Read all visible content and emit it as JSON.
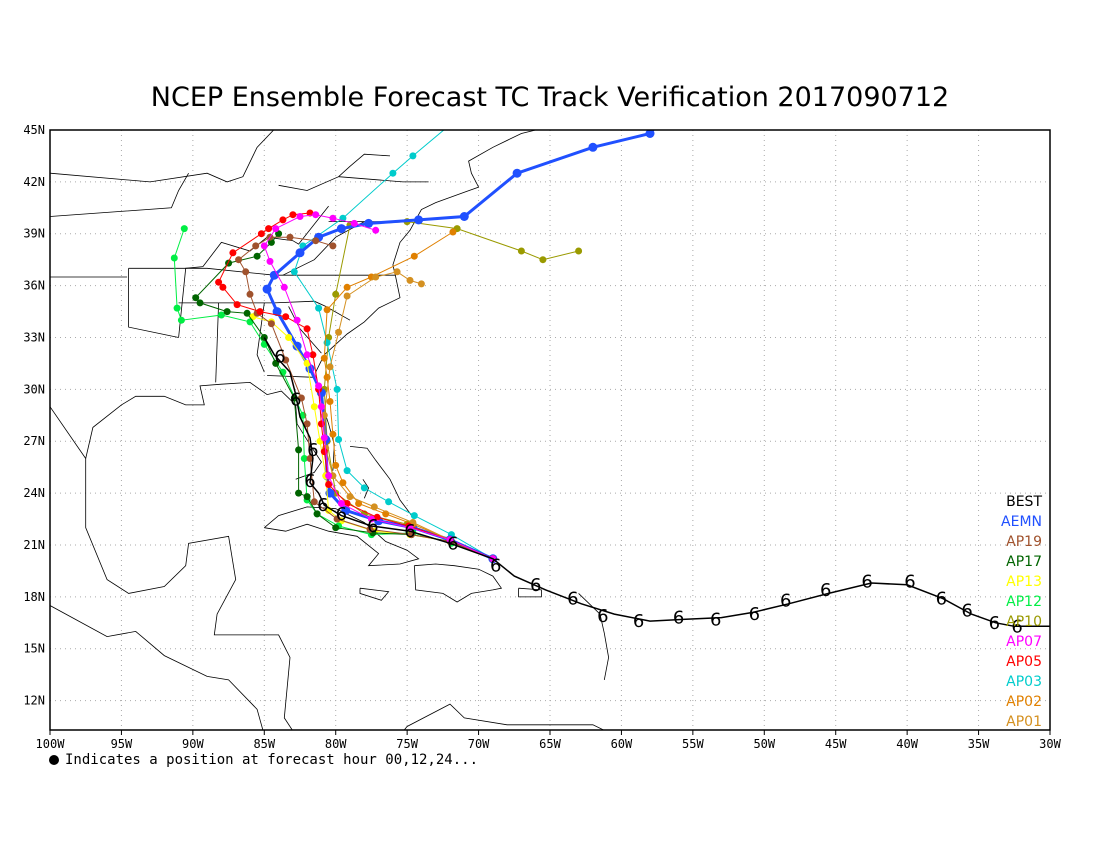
{
  "title": "NCEP Ensemble Forecast TC Track Verification 2017090712",
  "footnote": "Indicates a position at forecast hour 00,12,24...",
  "axes": {
    "lon_labels": [
      "100W",
      "95W",
      "90W",
      "85W",
      "80W",
      "75W",
      "70W",
      "65W",
      "60W",
      "55W",
      "50W",
      "45W",
      "40W",
      "35W",
      "30W"
    ],
    "lat_labels": [
      "45N",
      "42N",
      "39N",
      "36N",
      "33N",
      "30N",
      "27N",
      "24N",
      "21N",
      "18N",
      "15N",
      "12N"
    ],
    "lon_range": [
      -100,
      -30
    ],
    "lat_range": [
      10.3,
      45
    ],
    "grid": "dotted"
  },
  "legend": [
    {
      "label": "BEST",
      "color": "#000000"
    },
    {
      "label": "AEMN",
      "color": "#2050ff"
    },
    {
      "label": "AP19",
      "color": "#a0522d"
    },
    {
      "label": "AP17",
      "color": "#006400"
    },
    {
      "label": "AP13",
      "color": "#ffff00"
    },
    {
      "label": "AP12",
      "color": "#00ee44"
    },
    {
      "label": "AP10",
      "color": "#9a9a00"
    },
    {
      "label": "AP07",
      "color": "#ff00ff"
    },
    {
      "label": "AP05",
      "color": "#ff0000"
    },
    {
      "label": "AP03",
      "color": "#00cccc"
    },
    {
      "label": "AP02",
      "color": "#e08000"
    },
    {
      "label": "AP01",
      "color": "#d49020"
    }
  ],
  "tracks": [
    {
      "name": "AP10",
      "color": "#9a9a00",
      "width": 1,
      "points": [
        [
          -69,
          20.2
        ],
        [
          -72,
          21.3
        ],
        [
          -75,
          22.2
        ],
        [
          -78,
          22.8
        ],
        [
          -80,
          24
        ],
        [
          -80.6,
          27
        ],
        [
          -80.8,
          30
        ],
        [
          -80.5,
          33
        ],
        [
          -80,
          35.5
        ],
        [
          -79,
          39.5
        ],
        [
          -75,
          39.7
        ],
        [
          -71.5,
          39.3
        ],
        [
          -67,
          38
        ],
        [
          -65.5,
          37.5
        ],
        [
          -63,
          38
        ]
      ]
    },
    {
      "name": "AP03",
      "color": "#00cccc",
      "width": 1,
      "points": [
        [
          -69,
          20.2
        ],
        [
          -71.9,
          21.6
        ],
        [
          -74.5,
          22.7
        ],
        [
          -76.3,
          23.5
        ],
        [
          -78,
          24.3
        ],
        [
          -79.2,
          25.3
        ],
        [
          -79.8,
          27.1
        ],
        [
          -79.9,
          30
        ],
        [
          -80.6,
          32.7
        ],
        [
          -81.2,
          34.7
        ],
        [
          -82.9,
          36.8
        ],
        [
          -82.3,
          38.3
        ],
        [
          -79.5,
          39.9
        ],
        [
          -76,
          42.5
        ],
        [
          -74.6,
          43.5
        ],
        [
          -72,
          45.3
        ]
      ]
    },
    {
      "name": "AEMN",
      "color": "#2050ff",
      "width": 3,
      "points": [
        [
          -69,
          20.2
        ],
        [
          -72,
          21.3
        ],
        [
          -74.6,
          22
        ],
        [
          -77,
          22.4
        ],
        [
          -79.3,
          23
        ],
        [
          -80.4,
          24
        ],
        [
          -80.6,
          25
        ],
        [
          -80.7,
          27.1
        ],
        [
          -81,
          29.8
        ],
        [
          -81.8,
          31.2
        ],
        [
          -82.7,
          32.5
        ],
        [
          -84.1,
          34.5
        ],
        [
          -84.8,
          35.8
        ],
        [
          -84.3,
          36.6
        ],
        [
          -82.5,
          37.9
        ],
        [
          -81.2,
          38.8
        ],
        [
          -79.6,
          39.3
        ],
        [
          -77.7,
          39.6
        ],
        [
          -74.2,
          39.8
        ],
        [
          -71,
          40
        ],
        [
          -67.3,
          42.5
        ],
        [
          -62,
          44
        ],
        [
          -58,
          44.8
        ],
        [
          -57,
          45.8
        ]
      ]
    },
    {
      "name": "AP02",
      "color": "#e08000",
      "width": 1,
      "points": [
        [
          -69,
          20.2
        ],
        [
          -72,
          21.3
        ],
        [
          -74.6,
          22.2
        ],
        [
          -76.5,
          22.8
        ],
        [
          -78.4,
          23.4
        ],
        [
          -79.5,
          24.6
        ],
        [
          -80,
          25.6
        ],
        [
          -80.2,
          27.4
        ],
        [
          -80.4,
          29.3
        ],
        [
          -80.6,
          30.7
        ],
        [
          -80.8,
          31.8
        ],
        [
          -80.6,
          34.6
        ],
        [
          -79.2,
          35.9
        ],
        [
          -77.5,
          36.5
        ],
        [
          -74.5,
          37.7
        ],
        [
          -71.8,
          39.1
        ]
      ]
    },
    {
      "name": "AP01",
      "color": "#d49020",
      "width": 1,
      "points": [
        [
          -69,
          20.2
        ],
        [
          -72,
          21.3
        ],
        [
          -74.6,
          22.3
        ],
        [
          -77.3,
          23.2
        ],
        [
          -79,
          23.8
        ],
        [
          -80.2,
          25
        ],
        [
          -80.7,
          26.6
        ],
        [
          -80.8,
          28.5
        ],
        [
          -80.4,
          31.3
        ],
        [
          -79.8,
          33.3
        ],
        [
          -79.2,
          35.4
        ],
        [
          -77.2,
          36.5
        ],
        [
          -75.7,
          36.8
        ],
        [
          -74.8,
          36.3
        ],
        [
          -74,
          36.1
        ]
      ]
    },
    {
      "name": "AP13",
      "color": "#ffff00",
      "width": 1,
      "points": [
        [
          -69,
          20.2
        ],
        [
          -72,
          21.2
        ],
        [
          -74.8,
          21.6
        ],
        [
          -77.3,
          21.8
        ],
        [
          -79.6,
          22.4
        ],
        [
          -80.5,
          23
        ],
        [
          -80.7,
          25
        ],
        [
          -81.1,
          27
        ],
        [
          -81.5,
          29
        ],
        [
          -82,
          31.5
        ],
        [
          -83.3,
          33
        ],
        [
          -84.5,
          33.9
        ],
        [
          -85.8,
          34.2
        ]
      ]
    },
    {
      "name": "AP12",
      "color": "#00ee44",
      "width": 1,
      "points": [
        [
          -69,
          20.2
        ],
        [
          -71.9,
          21.1
        ],
        [
          -74.6,
          21.7
        ],
        [
          -77.5,
          21.6
        ],
        [
          -79.8,
          22.1
        ],
        [
          -81.3,
          22.8
        ],
        [
          -82,
          23.6
        ],
        [
          -82.2,
          26
        ],
        [
          -82.3,
          28.5
        ],
        [
          -83.7,
          31
        ],
        [
          -85,
          32.6
        ],
        [
          -86,
          33.9
        ],
        [
          -88,
          34.3
        ],
        [
          -90.8,
          34
        ],
        [
          -91.1,
          34.7
        ],
        [
          -91.3,
          37.6
        ],
        [
          -90.6,
          39.3
        ]
      ]
    },
    {
      "name": "AP17",
      "color": "#006400",
      "width": 1,
      "points": [
        [
          -69,
          20.2
        ],
        [
          -71.9,
          21.2
        ],
        [
          -74.7,
          21.6
        ],
        [
          -77.4,
          21.7
        ],
        [
          -80,
          22
        ],
        [
          -81.3,
          22.8
        ],
        [
          -82,
          23.8
        ],
        [
          -82.6,
          24
        ],
        [
          -82.6,
          26.5
        ],
        [
          -82.9,
          29.5
        ],
        [
          -84.2,
          31.5
        ],
        [
          -85,
          33
        ],
        [
          -86.2,
          34.4
        ],
        [
          -87.6,
          34.5
        ],
        [
          -89.5,
          35
        ],
        [
          -89.8,
          35.3
        ],
        [
          -87.5,
          37.3
        ],
        [
          -85.5,
          37.7
        ],
        [
          -84.5,
          38.5
        ],
        [
          -84,
          39
        ]
      ]
    },
    {
      "name": "AP19",
      "color": "#a0522d",
      "width": 1,
      "points": [
        [
          -69,
          20.2
        ],
        [
          -72,
          21.2
        ],
        [
          -74.7,
          21.6
        ],
        [
          -77.6,
          21.9
        ],
        [
          -79.9,
          22.5
        ],
        [
          -81.5,
          23.5
        ],
        [
          -81.8,
          26
        ],
        [
          -82,
          28
        ],
        [
          -82.4,
          29.5
        ],
        [
          -83.5,
          31.7
        ],
        [
          -84.5,
          33.8
        ],
        [
          -85.5,
          34.4
        ],
        [
          -86,
          35.5
        ],
        [
          -86.3,
          36.8
        ],
        [
          -86.8,
          37.5
        ],
        [
          -85.6,
          38.3
        ],
        [
          -84.6,
          38.8
        ],
        [
          -83.2,
          38.8
        ],
        [
          -81.4,
          38.6
        ],
        [
          -80.2,
          38.3
        ]
      ]
    },
    {
      "name": "AP05",
      "color": "#ff0000",
      "width": 1,
      "points": [
        [
          -69,
          20.2
        ],
        [
          -72,
          21.3
        ],
        [
          -74.9,
          22.1
        ],
        [
          -77.1,
          22.6
        ],
        [
          -79.2,
          23.4
        ],
        [
          -80.5,
          24.5
        ],
        [
          -80.8,
          26.4
        ],
        [
          -81,
          28
        ],
        [
          -81.2,
          30
        ],
        [
          -81.6,
          32
        ],
        [
          -82,
          33.5
        ],
        [
          -83.5,
          34.2
        ],
        [
          -85.3,
          34.5
        ],
        [
          -86.9,
          34.9
        ],
        [
          -87.9,
          35.9
        ],
        [
          -88.2,
          36.2
        ],
        [
          -87.2,
          37.9
        ],
        [
          -85.2,
          39
        ],
        [
          -84.7,
          39.3
        ],
        [
          -83.7,
          39.8
        ],
        [
          -83,
          40.1
        ],
        [
          -81.8,
          40.2
        ]
      ]
    },
    {
      "name": "AP07",
      "color": "#ff00ff",
      "width": 1,
      "points": [
        [
          -69,
          20.2
        ],
        [
          -72,
          21.3
        ],
        [
          -74.8,
          22
        ],
        [
          -77.5,
          22.5
        ],
        [
          -79.6,
          23.4
        ],
        [
          -80.5,
          25
        ],
        [
          -80.8,
          27.2
        ],
        [
          -81,
          29
        ],
        [
          -81.2,
          30.2
        ],
        [
          -82,
          32
        ],
        [
          -82.7,
          34
        ],
        [
          -83.6,
          35.9
        ],
        [
          -84.6,
          37.4
        ],
        [
          -85,
          38.3
        ],
        [
          -84.2,
          39.3
        ],
        [
          -82.5,
          40
        ],
        [
          -81.4,
          40.1
        ],
        [
          -80.2,
          39.9
        ],
        [
          -78.7,
          39.6
        ],
        [
          -77.2,
          39.2
        ]
      ]
    },
    {
      "name": "BEST",
      "color": "#000000",
      "width": 1.5,
      "points": [
        [
          -30,
          16.3
        ],
        [
          -32.5,
          16.3
        ],
        [
          -33.8,
          16.5
        ],
        [
          -35.5,
          17
        ],
        [
          -37.5,
          17.9
        ],
        [
          -40,
          18.7
        ],
        [
          -42.5,
          18.8
        ],
        [
          -45.5,
          18.2
        ],
        [
          -48.3,
          17.6
        ],
        [
          -50.8,
          17.1
        ],
        [
          -53,
          16.8
        ],
        [
          -55.5,
          16.7
        ],
        [
          -58,
          16.6
        ],
        [
          -60.5,
          17
        ],
        [
          -62.8,
          17.6
        ],
        [
          -65.3,
          18.4
        ],
        [
          -67.5,
          19.2
        ],
        [
          -69,
          20.2
        ],
        [
          -72,
          21.1
        ],
        [
          -74.8,
          21.8
        ],
        [
          -77.5,
          22.1
        ],
        [
          -79.6,
          22.7
        ],
        [
          -80.8,
          23.3
        ],
        [
          -81.2,
          24
        ],
        [
          -81.8,
          24.6
        ],
        [
          -81.6,
          26
        ],
        [
          -81.8,
          27.2
        ],
        [
          -82.5,
          28.4
        ],
        [
          -82.8,
          29.7
        ],
        [
          -83.2,
          31
        ],
        [
          -84.3,
          32
        ],
        [
          -85,
          33
        ]
      ]
    }
  ],
  "best_symbols": [
    [
      -32.3,
      16.3
    ],
    [
      -33.9,
      16.5
    ],
    [
      -35.8,
      17.2
    ],
    [
      -37.6,
      17.9
    ],
    [
      -39.8,
      18.9
    ],
    [
      -42.8,
      18.9
    ],
    [
      -45.7,
      18.4
    ],
    [
      -48.5,
      17.8
    ],
    [
      -50.7,
      17
    ],
    [
      -53.4,
      16.7
    ],
    [
      -56,
      16.8
    ],
    [
      -58.8,
      16.6
    ],
    [
      -61.3,
      16.9
    ],
    [
      -63.4,
      17.9
    ],
    [
      -66,
      18.7
    ],
    [
      -68.8,
      19.8
    ],
    [
      -71.8,
      21.1
    ],
    [
      -74.8,
      21.8
    ],
    [
      -77.4,
      22.1
    ],
    [
      -79.6,
      22.8
    ],
    [
      -80.9,
      23.3
    ],
    [
      -81.8,
      24.7
    ],
    [
      -81.6,
      26.5
    ],
    [
      -82.8,
      29.4
    ],
    [
      -83.9,
      31.9
    ]
  ]
}
